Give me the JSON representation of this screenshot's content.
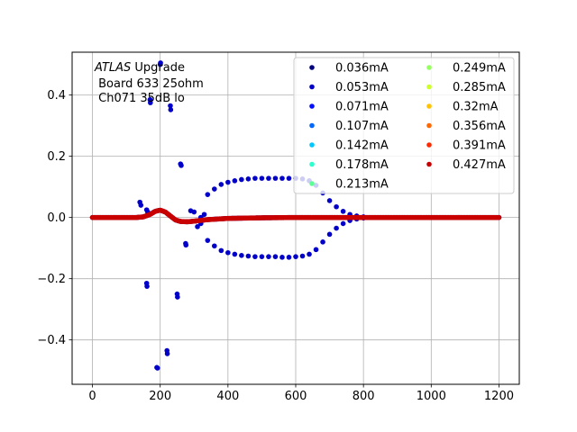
{
  "chart_data": {
    "type": "scatter",
    "title": "",
    "xlabel": "",
    "ylabel": "",
    "xlim": [
      -60,
      1260
    ],
    "ylim": [
      -0.545,
      0.54
    ],
    "grid": true,
    "legend_placement": "top-right",
    "legend_columns": 2,
    "annotation": {
      "line1_italic": "ATLAS",
      "line1_rest": " Upgrade",
      "line2": " Board 633 25ohm",
      "line3": " Ch071 35dB lo"
    },
    "x_ticks": [
      0,
      200,
      400,
      600,
      800,
      1000,
      1200
    ],
    "x_tick_labels": [
      "0",
      "200",
      "400",
      "600",
      "800",
      "1000",
      "1200"
    ],
    "y_ticks": [
      -0.4,
      -0.2,
      0.0,
      0.2,
      0.4
    ],
    "y_tick_labels": [
      "−0.4",
      "−0.2",
      "0.0",
      "0.2",
      "0.4"
    ],
    "series": [
      {
        "name": "0.036mA",
        "color": "#00007f"
      },
      {
        "name": "0.053mA",
        "color": "#0000c8"
      },
      {
        "name": "0.071mA",
        "color": "#0010ff"
      },
      {
        "name": "0.107mA",
        "color": "#0068ff"
      },
      {
        "name": "0.142mA",
        "color": "#00c8ff"
      },
      {
        "name": "0.178mA",
        "color": "#2affcd"
      },
      {
        "name": "0.213mA",
        "color": "#5fff97"
      },
      {
        "name": "0.249mA",
        "color": "#97ff5f"
      },
      {
        "name": "0.285mA",
        "color": "#cdff2a"
      },
      {
        "name": "0.32mA",
        "color": "#ffc400"
      },
      {
        "name": "0.356mA",
        "color": "#ff6800"
      },
      {
        "name": "0.391mA",
        "color": "#ff2a00"
      },
      {
        "name": "0.427mA",
        "color": "#c80000"
      }
    ],
    "outlier_points": [
      {
        "x": 140,
        "y": 0.05
      },
      {
        "x": 143,
        "y": 0.04
      },
      {
        "x": 160,
        "y": 0.025
      },
      {
        "x": 163,
        "y": 0.018
      },
      {
        "x": 170,
        "y": 0.385
      },
      {
        "x": 171,
        "y": 0.375
      },
      {
        "x": 160,
        "y": -0.215
      },
      {
        "x": 161,
        "y": -0.225
      },
      {
        "x": 190,
        "y": -0.49
      },
      {
        "x": 192,
        "y": -0.492
      },
      {
        "x": 200,
        "y": 0.5
      },
      {
        "x": 201,
        "y": 0.505
      },
      {
        "x": 220,
        "y": -0.435
      },
      {
        "x": 221,
        "y": -0.445
      },
      {
        "x": 230,
        "y": 0.365
      },
      {
        "x": 231,
        "y": 0.352
      },
      {
        "x": 250,
        "y": -0.25
      },
      {
        "x": 251,
        "y": -0.26
      },
      {
        "x": 260,
        "y": 0.175
      },
      {
        "x": 262,
        "y": 0.17
      },
      {
        "x": 275,
        "y": -0.085
      },
      {
        "x": 276,
        "y": -0.09
      },
      {
        "x": 290,
        "y": 0.022
      },
      {
        "x": 300,
        "y": 0.018
      },
      {
        "x": 310,
        "y": -0.03
      },
      {
        "x": 320,
        "y": -0.02
      },
      {
        "x": 330,
        "y": 0.01
      }
    ],
    "envelope": {
      "upper": [
        [
          320,
          0.0
        ],
        [
          340,
          0.075
        ],
        [
          360,
          0.093
        ],
        [
          380,
          0.108
        ],
        [
          400,
          0.115
        ],
        [
          420,
          0.12
        ],
        [
          440,
          0.124
        ],
        [
          460,
          0.126
        ],
        [
          480,
          0.128
        ],
        [
          500,
          0.128
        ],
        [
          520,
          0.128
        ],
        [
          540,
          0.128
        ],
        [
          560,
          0.128
        ],
        [
          580,
          0.128
        ],
        [
          600,
          0.128
        ],
        [
          620,
          0.126
        ],
        [
          640,
          0.12
        ],
        [
          660,
          0.105
        ],
        [
          680,
          0.08
        ],
        [
          700,
          0.055
        ],
        [
          720,
          0.035
        ],
        [
          740,
          0.02
        ],
        [
          760,
          0.01
        ],
        [
          780,
          0.005
        ],
        [
          800,
          0.002
        ]
      ],
      "lower": [
        [
          320,
          0.0
        ],
        [
          340,
          -0.075
        ],
        [
          360,
          -0.093
        ],
        [
          380,
          -0.108
        ],
        [
          400,
          -0.115
        ],
        [
          420,
          -0.12
        ],
        [
          440,
          -0.124
        ],
        [
          460,
          -0.126
        ],
        [
          480,
          -0.128
        ],
        [
          500,
          -0.128
        ],
        [
          520,
          -0.128
        ],
        [
          540,
          -0.128
        ],
        [
          560,
          -0.13
        ],
        [
          580,
          -0.13
        ],
        [
          600,
          -0.128
        ],
        [
          620,
          -0.126
        ],
        [
          640,
          -0.12
        ],
        [
          660,
          -0.105
        ],
        [
          680,
          -0.08
        ],
        [
          700,
          -0.055
        ],
        [
          720,
          -0.035
        ],
        [
          740,
          -0.02
        ],
        [
          760,
          -0.01
        ],
        [
          780,
          -0.005
        ],
        [
          800,
          -0.002
        ]
      ]
    },
    "baseline_trace": [
      [
        0,
        0.0
      ],
      [
        100,
        0.0
      ],
      [
        130,
        0.0
      ],
      [
        150,
        0.002
      ],
      [
        170,
        0.01
      ],
      [
        185,
        0.02
      ],
      [
        200,
        0.024
      ],
      [
        215,
        0.018
      ],
      [
        230,
        0.005
      ],
      [
        245,
        -0.008
      ],
      [
        260,
        -0.013
      ],
      [
        280,
        -0.014
      ],
      [
        300,
        -0.012
      ],
      [
        340,
        -0.007
      ],
      [
        400,
        -0.003
      ],
      [
        500,
        -0.001
      ],
      [
        600,
        0.0
      ],
      [
        800,
        0.0
      ],
      [
        1000,
        0.0
      ],
      [
        1200,
        0.0
      ]
    ]
  }
}
